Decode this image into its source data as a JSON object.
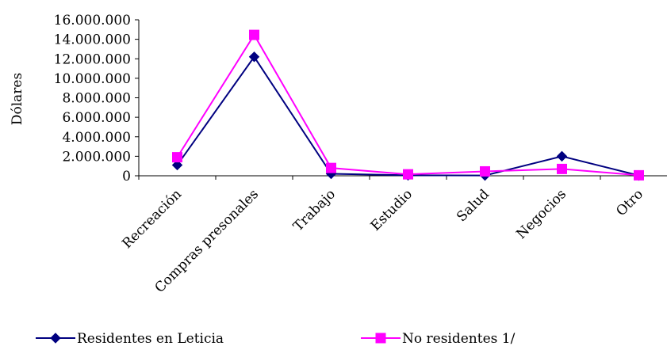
{
  "chart_data": {
    "type": "line",
    "title": "",
    "xlabel": "",
    "ylabel": "Dólares",
    "ylim": [
      0,
      16000000
    ],
    "yticks": [
      "0",
      "2.000.000",
      "4.000.000",
      "6.000.000",
      "8.000.000",
      "10.000.000",
      "12.000.000",
      "14.000.000",
      "16.000.000"
    ],
    "categories": [
      "Recreación",
      "Compras presonales",
      "Trabajo",
      "Estudio",
      "Salud",
      "Negocios",
      "Otro"
    ],
    "grid": false,
    "legend_position": "bottom",
    "series": [
      {
        "name": "Residentes en Leticia",
        "color": "#000080",
        "marker": "diamond",
        "values": [
          1100000,
          12200000,
          200000,
          50000,
          30000,
          2000000,
          30000
        ]
      },
      {
        "name": "No residentes 1/",
        "color": "#FF00FF",
        "marker": "square",
        "values": [
          1900000,
          14450000,
          800000,
          150000,
          450000,
          700000,
          50000
        ]
      }
    ]
  }
}
